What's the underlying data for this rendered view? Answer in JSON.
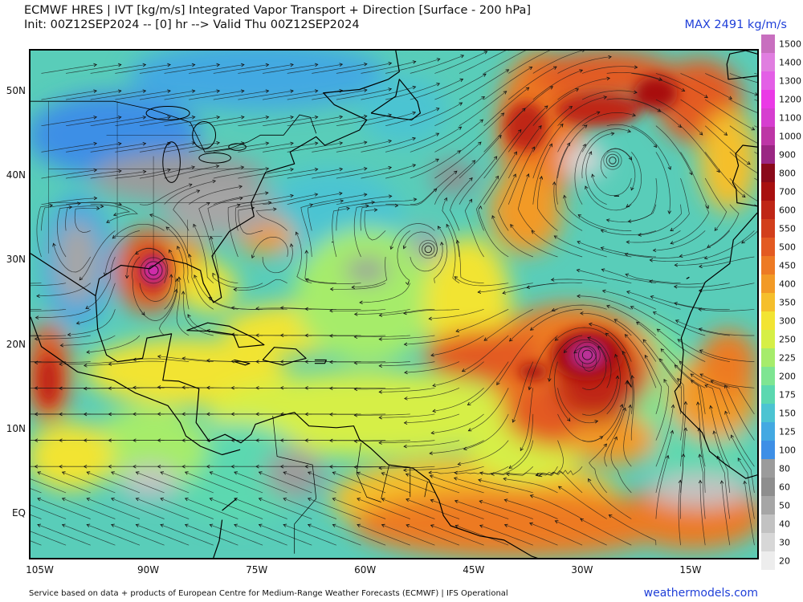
{
  "header": {
    "line1": "ECMWF HRES | IVT [kg/m/s] Integrated Vapor Transport + Direction [Surface - 200 hPa]",
    "line2": "Init: 00Z12SEP2024 -- [0] hr --> Valid Thu 00Z12SEP2024",
    "max_label": "MAX 2491 kg/m/s"
  },
  "map": {
    "lat_labels": [
      "50N",
      "40N",
      "30N",
      "20N",
      "10N",
      "EQ"
    ],
    "lon_labels": [
      "105W",
      "90W",
      "75W",
      "60W",
      "45W",
      "30W",
      "15W"
    ],
    "features": [
      {
        "name": "hurricane-center-gulf",
        "label": "",
        "lon": -89.5,
        "lat": 29.0,
        "ivt": 1400
      },
      {
        "name": "tropical-cyclone-central-atlantic",
        "label": "",
        "lon": -29.5,
        "lat": 19.0,
        "ivt": 1200
      },
      {
        "name": "cyclone-subtropical",
        "label": "",
        "lon": -51.5,
        "lat": 31.5,
        "ivt": 175
      },
      {
        "name": "extratropical-low-north-atlantic",
        "label": "",
        "lon": -26.0,
        "lat": 42.0,
        "ivt": 30
      }
    ]
  },
  "colorbar": {
    "ticks": [
      "1500",
      "1400",
      "1300",
      "1200",
      "1100",
      "1000",
      "900",
      "800",
      "700",
      "600",
      "550",
      "500",
      "450",
      "400",
      "350",
      "300",
      "250",
      "225",
      "200",
      "175",
      "150",
      "125",
      "100",
      "80",
      "60",
      "50",
      "40",
      "30",
      "20"
    ],
    "colors": [
      "#c86fbf",
      "#e07ee0",
      "#e35fe6",
      "#ea3ae6",
      "#d63ed0",
      "#bd36a6",
      "#9a2783",
      "#8a0a1a",
      "#a81010",
      "#bf2616",
      "#d23f1c",
      "#e35a22",
      "#ed7a24",
      "#f29a26",
      "#f5bf2c",
      "#f2e433",
      "#d6ef46",
      "#a6ec6b",
      "#7ee592",
      "#5bd8b0",
      "#4cc4d2",
      "#43a9e2",
      "#3e8fe6",
      "#9b9b9b",
      "#8e8e8e",
      "#a6a6a6",
      "#c2c2c2",
      "#d7d7d7",
      "#ededed"
    ]
  },
  "footer": {
    "credit": "Service based on data + products of European Centre for Medium-Range Weather Forecasts (ECMWF) | IFS Operational",
    "brand": "weathermodels.com"
  }
}
